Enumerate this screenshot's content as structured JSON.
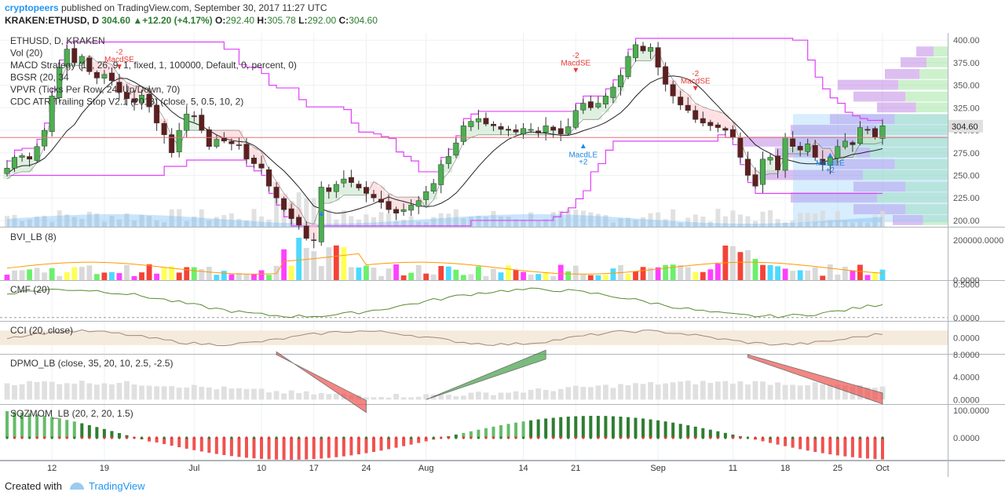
{
  "header": {
    "author": "cryptopeers",
    "published": "published on TradingView.com, September 30, 2017 11:27 UTC"
  },
  "quote": {
    "symbol": "KRAKEN:ETHUSD, D",
    "last": "304.60",
    "change": "+12.20 (+4.17%)",
    "o_label": "O:",
    "o": "292.40",
    "h_label": "H:",
    "h": "305.78",
    "l_label": "L:",
    "l": "292.00",
    "c_label": "C:",
    "c": "304.60"
  },
  "footer": {
    "created_with": "Created with",
    "brand": "TradingView"
  },
  "colors": {
    "up": "#4caf50",
    "down": "#5d1f1f",
    "red": "#e53935",
    "green": "#2e7d32",
    "band": "#e040fb",
    "grid": "#eef0f3"
  },
  "chart_data": [
    {
      "type": "candlestick",
      "pane": "main",
      "legend": [
        "ETHUSD, D, KRAKEN",
        "Vol (20)",
        "MACD Strategy (12, 26, 9, 1, fixed, 1, 100000, Default, 0, percent, 0)",
        "BGSR (20, 34",
        "VPVR (Ticks Per Row, 24, Up/Down, 70)",
        "CDC ATR Trailing Stop V2.1 (2013) (close, 5, 0.5, 10, 2)"
      ],
      "y_ticks": [
        200,
        225,
        250,
        275,
        300,
        325,
        350,
        375,
        400
      ],
      "y_tick_labels": [
        "200.00",
        "225.00",
        "250.00",
        "275.00",
        "300.00",
        "325.00",
        "350.00",
        "375.00",
        "400.00"
      ],
      "ylim": [
        193,
        408
      ],
      "last_price_label": "304.60",
      "x_ticks": [
        {
          "label": "12",
          "idx": 6
        },
        {
          "label": "19",
          "idx": 13
        },
        {
          "label": "Jul",
          "idx": 25
        },
        {
          "label": "10",
          "idx": 34
        },
        {
          "label": "17",
          "idx": 41
        },
        {
          "label": "24",
          "idx": 48
        },
        {
          "label": "Aug",
          "idx": 56
        },
        {
          "label": "14",
          "idx": 69
        },
        {
          "label": "21",
          "idx": 76
        },
        {
          "label": "Sep",
          "idx": 87
        },
        {
          "label": "11",
          "idx": 97
        },
        {
          "label": "18",
          "idx": 104
        },
        {
          "label": "25",
          "idx": 111
        },
        {
          "label": "Oct",
          "idx": 117
        }
      ],
      "close": [
        258,
        270,
        272,
        268,
        282,
        300,
        338,
        370,
        390,
        375,
        382,
        365,
        358,
        362,
        355,
        342,
        335,
        331,
        339,
        326,
        308,
        295,
        275,
        300,
        318,
        315,
        300,
        282,
        290,
        288,
        285,
        283,
        268,
        263,
        258,
        238,
        225,
        212,
        202,
        195,
        180,
        178,
        237,
        232,
        240,
        246,
        242,
        236,
        230,
        225,
        220,
        212,
        208,
        212,
        217,
        222,
        232,
        241,
        262,
        271,
        286,
        305,
        310,
        313,
        307,
        305,
        301,
        300,
        298,
        302,
        301,
        297,
        305,
        300,
        296,
        304,
        322,
        330,
        325,
        330,
        338,
        348,
        361,
        382,
        395,
        388,
        392,
        370,
        351,
        338,
        328,
        322,
        312,
        308,
        305,
        303,
        300,
        292,
        270,
        250,
        238,
        268,
        270,
        256,
        292,
        282,
        278,
        285,
        270,
        262,
        270,
        282,
        288,
        284,
        303,
        300,
        292,
        305
      ],
      "volume_note": "volume bars unlabeled",
      "annotations": [
        {
          "text": "-2",
          "idx": 15,
          "price": 384,
          "color": "#e53935"
        },
        {
          "text": "MacdSE",
          "idx": 15,
          "price": 376,
          "color": "#e53935"
        },
        {
          "text": "-2",
          "idx": 76,
          "price": 380,
          "color": "#e53935"
        },
        {
          "text": "MacdSE",
          "idx": 76,
          "price": 372,
          "color": "#e53935"
        },
        {
          "text": "-2",
          "idx": 92,
          "price": 360,
          "color": "#e53935"
        },
        {
          "text": "MacdSE",
          "idx": 92,
          "price": 352,
          "color": "#e53935"
        },
        {
          "text": "MacdLE",
          "idx": 77,
          "price": 270,
          "color": "#1e88e5"
        },
        {
          "text": "+2",
          "idx": 77,
          "price": 262,
          "color": "#1e88e5"
        },
        {
          "text": "MacdLE",
          "idx": 110,
          "price": 261,
          "color": "#1e88e5"
        },
        {
          "text": "+2",
          "idx": 110,
          "price": 253,
          "color": "#1e88e5"
        }
      ]
    },
    {
      "type": "bar",
      "pane": "BVI",
      "legend": "BVI_LB (8)",
      "y_ticks": [
        0,
        200000
      ],
      "y_tick_labels": [
        "0.0000",
        "200000.0000"
      ],
      "ylim": [
        0,
        260000
      ]
    },
    {
      "type": "line",
      "pane": "CMF",
      "legend": "CMF (20)",
      "y_ticks": [
        0,
        0.5
      ],
      "y_tick_labels": [
        "0.0000",
        "0.5000"
      ],
      "ylim": [
        -0.05,
        0.55
      ]
    },
    {
      "type": "line",
      "pane": "CCI",
      "legend": "CCI (20, close)",
      "y_ticks": [
        0
      ],
      "y_tick_labels": [
        "0.0000"
      ],
      "ylim": [
        -220,
        220
      ]
    },
    {
      "type": "area",
      "pane": "DPMO",
      "legend": "DPMO_LB (close, 35, 20, 10, 2.5, -2.5)",
      "y_ticks": [
        0,
        4,
        8
      ],
      "y_tick_labels": [
        "0.0000",
        "4.0000",
        "8.0000"
      ],
      "ylim": [
        -0.8,
        8
      ]
    },
    {
      "type": "bar",
      "pane": "SQZMOM",
      "legend": "SQZMOM_LB (20, 2, 20, 1.5)",
      "y_ticks": [
        0,
        100
      ],
      "y_tick_labels": [
        "0.0000",
        "100.0000"
      ],
      "ylim": [
        -80,
        120
      ]
    }
  ]
}
